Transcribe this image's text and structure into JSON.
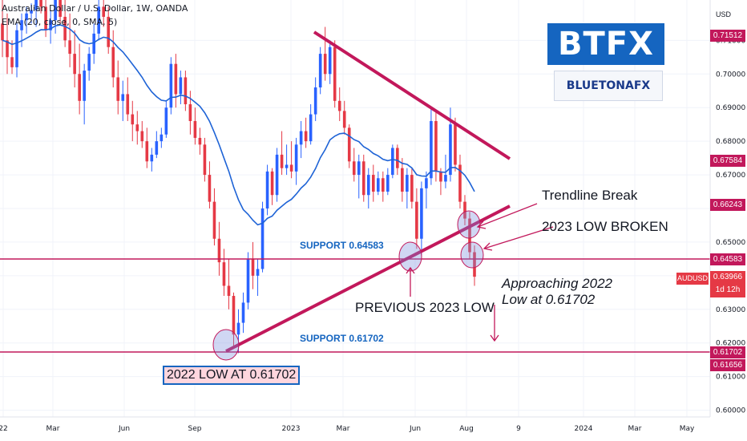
{
  "legend": {
    "symbol": "Australian Dollar / U.S. Dollar, 1W, OANDA",
    "indicator": "EMA (20, close, 0, SMA, 5)"
  },
  "currency": "USD",
  "logos": {
    "brand1": "BTFX",
    "brand2": "BLUETONAFX"
  },
  "price_labels": [
    "0.71512",
    "0.67584",
    "0.66243",
    "0.64583",
    "0.61702",
    "0.61656"
  ],
  "last_price": {
    "symbol": "AUDUSD",
    "price": "0.63966",
    "countdown": "1d 12h"
  },
  "chart_data": {
    "type": "candlestick",
    "title": "",
    "y_ticks": [
      "0.71000",
      "0.70000",
      "0.69000",
      "0.68000",
      "0.67000",
      "0.66000",
      "0.65000",
      "0.64000",
      "0.63000",
      "0.62000",
      "0.61000",
      "0.60000"
    ],
    "x_ticks": [
      "22",
      "Mar",
      "Jun",
      "Sep",
      "2023",
      "Mar",
      "Jun",
      "Aug",
      "9",
      "2024",
      "Mar",
      "May"
    ],
    "ylim": [
      0.598,
      0.722
    ],
    "series": [
      {
        "ohlc": [
          [
            0.715,
            0.722,
            0.705,
            0.71
          ],
          [
            0.71,
            0.718,
            0.7,
            0.705
          ],
          [
            0.705,
            0.71,
            0.7,
            0.702
          ],
          [
            0.702,
            0.715,
            0.699,
            0.713
          ],
          [
            0.713,
            0.718,
            0.708,
            0.716
          ],
          [
            0.716,
            0.72,
            0.712,
            0.718
          ],
          [
            0.718,
            0.721,
            0.715,
            0.719
          ],
          [
            0.719,
            0.724,
            0.714,
            0.722
          ],
          [
            0.722,
            0.724,
            0.718,
            0.72
          ],
          [
            0.72,
            0.724,
            0.711,
            0.713
          ],
          [
            0.713,
            0.719,
            0.709,
            0.716
          ],
          [
            0.716,
            0.724,
            0.712,
            0.723
          ],
          [
            0.723,
            0.724,
            0.715,
            0.717
          ],
          [
            0.717,
            0.723,
            0.708,
            0.71
          ],
          [
            0.71,
            0.718,
            0.702,
            0.706
          ],
          [
            0.706,
            0.713,
            0.696,
            0.7
          ],
          [
            0.7,
            0.709,
            0.688,
            0.692
          ],
          [
            0.692,
            0.703,
            0.685,
            0.701
          ],
          [
            0.701,
            0.708,
            0.698,
            0.706
          ],
          [
            0.706,
            0.715,
            0.703,
            0.712
          ],
          [
            0.712,
            0.724,
            0.71,
            0.72
          ],
          [
            0.72,
            0.724,
            0.714,
            0.717
          ],
          [
            0.717,
            0.72,
            0.706,
            0.708
          ],
          [
            0.708,
            0.713,
            0.696,
            0.699
          ],
          [
            0.699,
            0.704,
            0.688,
            0.692
          ],
          [
            0.692,
            0.698,
            0.686,
            0.694
          ],
          [
            0.694,
            0.699,
            0.686,
            0.688
          ],
          [
            0.688,
            0.692,
            0.68,
            0.685
          ],
          [
            0.685,
            0.689,
            0.679,
            0.683
          ],
          [
            0.683,
            0.686,
            0.678,
            0.68
          ],
          [
            0.68,
            0.684,
            0.672,
            0.674
          ],
          [
            0.674,
            0.678,
            0.671,
            0.676
          ],
          [
            0.676,
            0.683,
            0.675,
            0.68
          ],
          [
            0.68,
            0.684,
            0.678,
            0.682
          ],
          [
            0.682,
            0.692,
            0.681,
            0.69
          ],
          [
            0.69,
            0.705,
            0.688,
            0.703
          ],
          [
            0.703,
            0.706,
            0.69,
            0.694
          ],
          [
            0.694,
            0.701,
            0.691,
            0.699
          ],
          [
            0.699,
            0.701,
            0.689,
            0.691
          ],
          [
            0.691,
            0.695,
            0.682,
            0.686
          ],
          [
            0.686,
            0.69,
            0.679,
            0.681
          ],
          [
            0.681,
            0.684,
            0.676,
            0.679
          ],
          [
            0.679,
            0.681,
            0.668,
            0.67
          ],
          [
            0.67,
            0.674,
            0.66,
            0.662
          ],
          [
            0.662,
            0.666,
            0.649,
            0.651
          ],
          [
            0.651,
            0.656,
            0.64,
            0.644
          ],
          [
            0.644,
            0.648,
            0.634,
            0.637
          ],
          [
            0.637,
            0.645,
            0.63,
            0.634
          ],
          [
            0.634,
            0.635,
            0.619,
            0.6225
          ],
          [
            0.6225,
            0.63,
            0.617,
            0.626
          ],
          [
            0.626,
            0.635,
            0.623,
            0.632
          ],
          [
            0.632,
            0.647,
            0.63,
            0.645
          ],
          [
            0.645,
            0.65,
            0.636,
            0.64
          ],
          [
            0.64,
            0.645,
            0.634,
            0.642
          ],
          [
            0.642,
            0.662,
            0.641,
            0.66
          ],
          [
            0.66,
            0.673,
            0.658,
            0.671
          ],
          [
            0.671,
            0.672,
            0.661,
            0.664
          ],
          [
            0.664,
            0.678,
            0.662,
            0.676
          ],
          [
            0.676,
            0.683,
            0.67,
            0.672
          ],
          [
            0.672,
            0.679,
            0.67,
            0.673
          ],
          [
            0.673,
            0.68,
            0.669,
            0.671
          ],
          [
            0.671,
            0.681,
            0.667,
            0.679
          ],
          [
            0.679,
            0.686,
            0.675,
            0.683
          ],
          [
            0.683,
            0.687,
            0.678,
            0.68
          ],
          [
            0.68,
            0.691,
            0.679,
            0.688
          ],
          [
            0.688,
            0.699,
            0.686,
            0.696
          ],
          [
            0.696,
            0.708,
            0.694,
            0.706
          ],
          [
            0.706,
            0.714,
            0.698,
            0.7
          ],
          [
            0.7,
            0.71,
            0.697,
            0.708
          ],
          [
            0.708,
            0.71,
            0.69,
            0.692
          ],
          [
            0.692,
            0.696,
            0.686,
            0.689
          ],
          [
            0.689,
            0.692,
            0.682,
            0.684
          ],
          [
            0.684,
            0.685,
            0.672,
            0.674
          ],
          [
            0.674,
            0.678,
            0.668,
            0.67
          ],
          [
            0.67,
            0.676,
            0.663,
            0.674
          ],
          [
            0.674,
            0.676,
            0.662,
            0.664
          ],
          [
            0.664,
            0.672,
            0.66,
            0.67
          ],
          [
            0.67,
            0.673,
            0.662,
            0.665
          ],
          [
            0.665,
            0.671,
            0.664,
            0.669
          ],
          [
            0.669,
            0.671,
            0.662,
            0.665
          ],
          [
            0.665,
            0.672,
            0.664,
            0.67
          ],
          [
            0.67,
            0.679,
            0.669,
            0.678
          ],
          [
            0.678,
            0.679,
            0.67,
            0.672
          ],
          [
            0.672,
            0.675,
            0.662,
            0.665
          ],
          [
            0.665,
            0.672,
            0.66,
            0.67
          ],
          [
            0.67,
            0.672,
            0.66,
            0.662
          ],
          [
            0.662,
            0.666,
            0.648,
            0.651
          ],
          [
            0.651,
            0.668,
            0.646,
            0.666
          ],
          [
            0.666,
            0.671,
            0.66,
            0.669
          ],
          [
            0.669,
            0.69,
            0.667,
            0.686
          ],
          [
            0.686,
            0.689,
            0.668,
            0.671
          ],
          [
            0.671,
            0.672,
            0.664,
            0.668
          ],
          [
            0.668,
            0.676,
            0.666,
            0.67
          ],
          [
            0.67,
            0.69,
            0.668,
            0.685
          ],
          [
            0.685,
            0.687,
            0.671,
            0.673
          ],
          [
            0.673,
            0.676,
            0.66,
            0.662
          ],
          [
            0.662,
            0.664,
            0.655,
            0.657
          ],
          [
            0.657,
            0.659,
            0.645,
            0.647
          ],
          [
            0.647,
            0.649,
            0.637,
            0.6397
          ]
        ]
      },
      {
        "name": "EMA (20, close, 0, SMA, 5)",
        "values": []
      }
    ],
    "levels": [
      "0.64583",
      "0.61702"
    ],
    "annotations": [
      "Trendline Break",
      "2023 LOW BROKEN",
      "SUPPORT 0.64583",
      "SUPPORT 0.61702",
      "PREVIOUS 2023 LOW",
      "Approaching 2022 Low at 0.61702",
      "2022 LOW AT 0.61702"
    ]
  },
  "text": {
    "trendline_break": "Trendline Break",
    "low_broken": "2023 LOW BROKEN",
    "support1": "SUPPORT 0.64583",
    "support2": "SUPPORT 0.61702",
    "prev_low": "PREVIOUS 2023 LOW",
    "approaching": "Approaching 2022 Low at 0.61702",
    "low_2022": "2022 LOW AT 0.61702"
  },
  "colors": {
    "up": "#2962ff",
    "down": "#e53945",
    "ema": "#1e63d6",
    "line": "#c2185b"
  }
}
